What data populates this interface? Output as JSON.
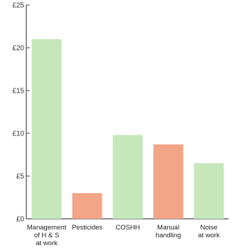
{
  "chart_data": {
    "type": "bar",
    "categories": [
      [
        "Management",
        "of H & S",
        "at work"
      ],
      [
        "Pesticides"
      ],
      [
        "COSHH"
      ],
      [
        "Manual",
        "handling"
      ],
      [
        "Noise",
        "at work"
      ]
    ],
    "values": [
      21,
      3,
      9.8,
      8.7,
      6.5
    ],
    "colors": [
      "#c5e7b9",
      "#f3a587",
      "#c5e7b9",
      "#f3a587",
      "#c5e7b9"
    ],
    "title": "",
    "xlabel": "",
    "ylabel": "",
    "ylim": [
      0,
      25
    ],
    "yticks": [
      0,
      5,
      10,
      15,
      20,
      25
    ],
    "ytick_labels": [
      "£0",
      "£5",
      "£10",
      "£15",
      "£20",
      "£25"
    ],
    "grid": false,
    "axis_color": "#4a4a4a"
  }
}
